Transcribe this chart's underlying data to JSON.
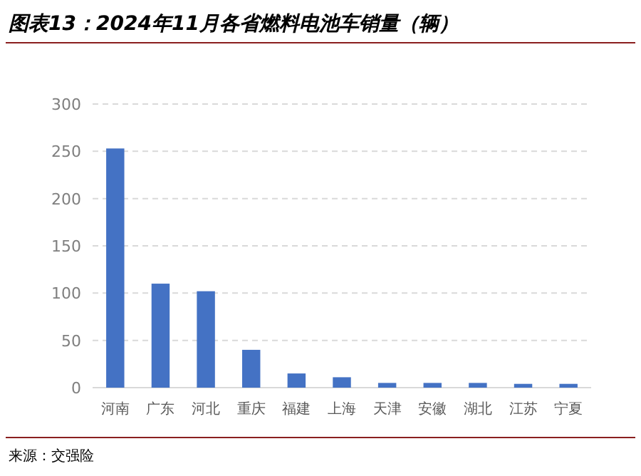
{
  "chart_data": {
    "type": "bar",
    "title": "图表13：2024年11月各省燃料电池车销量（辆）",
    "categories": [
      "河南",
      "广东",
      "河北",
      "重庆",
      "福建",
      "上海",
      "天津",
      "安徽",
      "湖北",
      "江苏",
      "宁夏"
    ],
    "values": [
      253,
      110,
      102,
      40,
      15,
      11,
      5,
      5,
      5,
      4,
      4
    ],
    "color": "#4472c4",
    "ylim": [
      0,
      300
    ],
    "yticks": [
      0,
      50,
      100,
      150,
      200,
      250,
      300
    ],
    "grid": "y",
    "annotations": [
      "来源：交强险"
    ]
  }
}
